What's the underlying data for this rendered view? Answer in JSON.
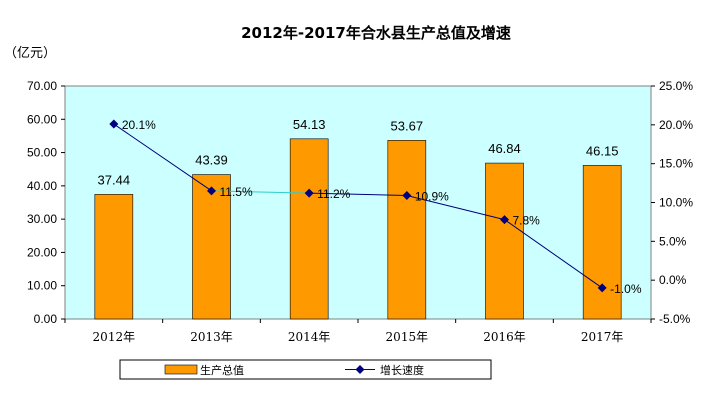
{
  "chart_data": {
    "type": "bar",
    "title": "2012年-2017年合水县生产总值及增速",
    "unit_label": "（亿元）",
    "categories": [
      "2012年",
      "2013年",
      "2014年",
      "2015年",
      "2016年",
      "2017年"
    ],
    "series": [
      {
        "name": "生产总值",
        "type": "bar",
        "axis": "left",
        "values": [
          37.44,
          43.39,
          54.13,
          53.67,
          46.84,
          46.15
        ],
        "labels": [
          "37.44",
          "43.39",
          "54.13",
          "53.67",
          "46.84",
          "46.15"
        ],
        "color": "#ff9900"
      },
      {
        "name": "增长速度",
        "type": "line",
        "axis": "right",
        "values": [
          20.1,
          11.5,
          11.2,
          10.9,
          7.8,
          -1.0
        ],
        "labels": [
          "20.1%",
          "11.5%",
          "11.2%",
          "10.9%",
          "7.8%",
          "-1.0%"
        ],
        "color": "#000080"
      }
    ],
    "ylim_left": [
      0,
      70
    ],
    "ylim_right": [
      -5,
      25
    ],
    "yticks_left": [
      "0.00",
      "10.00",
      "20.00",
      "30.00",
      "40.00",
      "50.00",
      "60.00",
      "70.00"
    ],
    "yticks_right": [
      "-5.0%",
      "0.0%",
      "5.0%",
      "10.0%",
      "15.0%",
      "20.0%",
      "25.0%"
    ],
    "plot_background": "#ccffff",
    "grid": false,
    "legend_position": "bottom"
  }
}
